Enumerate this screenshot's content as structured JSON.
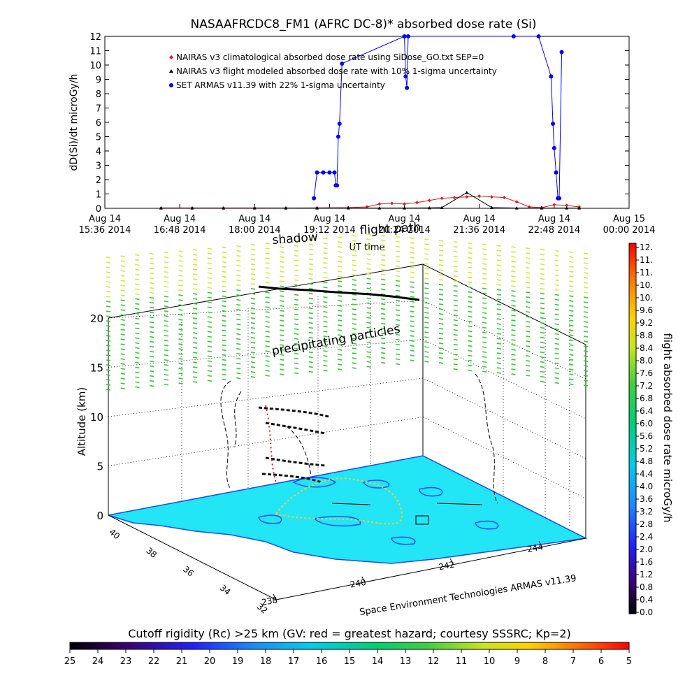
{
  "top_chart": {
    "title": "NASAAFRCDC8_FM1 (AFRC DC-8)* absorbed dose rate (Si)",
    "ylabel": "dD(Si)/dt microGy/h",
    "xlabel": "UT time",
    "yticks": [
      "0",
      "1",
      "2",
      "3",
      "4",
      "5",
      "6",
      "7",
      "8",
      "9",
      "10",
      "11",
      "12"
    ],
    "xticks": [
      {
        "top": "Aug 14",
        "bottom": "15:36 2014"
      },
      {
        "top": "Aug 14",
        "bottom": "16:48 2014"
      },
      {
        "top": "Aug 14",
        "bottom": "18:00 2014"
      },
      {
        "top": "Aug 14",
        "bottom": "19:12 2014"
      },
      {
        "top": "Aug 14",
        "bottom": "20:24 2014"
      },
      {
        "top": "Aug 14",
        "bottom": "21:36 2014"
      },
      {
        "top": "Aug 14",
        "bottom": "22:48 2014"
      },
      {
        "top": "Aug 15",
        "bottom": "00:00 2014"
      }
    ],
    "legend": [
      {
        "label": "NAIRAS v3 climatological absorbed dose rate using SiDose_GO.txt SEP=0",
        "marker": "diamond",
        "color": "#e41a1c"
      },
      {
        "label": "NAIRAS v3 flight modeled absorbed dose rate with 10% 1-sigma uncertainty",
        "marker": "triangle",
        "color": "#000000"
      },
      {
        "label": "SET ARMAS v11.39 with 22% 1-sigma uncertainty",
        "marker": "circle",
        "color": "#0000ff"
      }
    ]
  },
  "chart_data": [
    {
      "type": "line",
      "title": "NASAAFRCDC8_FM1 (AFRC DC-8)* absorbed dose rate (Si)",
      "xlabel": "UT time",
      "ylabel": "dD(Si)/dt microGy/h",
      "x_unit": "hours UT, Aug 14 2014",
      "xlim": [
        15.6,
        24.0
      ],
      "ylim": [
        0,
        12
      ],
      "grid": false,
      "legend_position": "top-left",
      "series": [
        {
          "name": "NAIRAS v3 climatological absorbed dose rate using SiDose_GO.txt SEP=0",
          "color": "#e41a1c",
          "x": [
            16.5,
            17.0,
            17.5,
            18.0,
            18.5,
            19.0,
            19.5,
            19.8,
            20.0,
            20.2,
            20.4,
            20.6,
            20.8,
            21.0,
            21.2,
            21.4,
            21.6,
            21.8,
            22.0,
            22.2,
            22.4,
            22.6,
            22.8,
            23.0,
            23.2
          ],
          "y": [
            0.02,
            0.02,
            0.02,
            0.02,
            0.02,
            0.03,
            0.05,
            0.1,
            0.3,
            0.35,
            0.3,
            0.4,
            0.55,
            0.7,
            0.75,
            0.8,
            0.85,
            0.8,
            0.75,
            0.45,
            0.1,
            0.05,
            0.25,
            0.2,
            0.1
          ]
        },
        {
          "name": "NAIRAS v3 flight modeled absorbed dose rate with 10% 1-sigma uncertainty",
          "color": "#000000",
          "x": [
            16.5,
            17.0,
            17.5,
            18.0,
            18.5,
            19.0,
            19.5,
            20.0,
            20.4,
            20.8,
            21.0,
            21.4,
            21.8,
            22.2,
            22.6,
            23.0,
            23.2
          ],
          "y": [
            0.02,
            0.02,
            0.02,
            0.02,
            0.02,
            0.02,
            0.02,
            0.02,
            0.02,
            0.03,
            0.05,
            1.1,
            0.05,
            0.02,
            0.02,
            0.02,
            0.02
          ]
        },
        {
          "name": "SET ARMAS v11.39 with 22% 1-sigma uncertainty",
          "color": "#0000ff",
          "x": [
            18.95,
            19.0,
            19.1,
            19.2,
            19.28,
            19.3,
            19.32,
            19.34,
            19.36,
            19.4,
            20.4,
            20.42,
            20.44,
            20.46,
            22.15,
            22.55,
            22.75,
            22.78,
            22.8,
            22.83,
            22.86,
            22.88,
            22.92
          ],
          "y": [
            0.7,
            2.5,
            2.5,
            2.5,
            2.5,
            1.6,
            1.6,
            5.0,
            5.9,
            10.1,
            12.0,
            9.2,
            8.4,
            12.0,
            12.0,
            12.0,
            9.2,
            5.9,
            4.2,
            2.5,
            0.7,
            0.7,
            10.9
          ]
        }
      ]
    },
    {
      "type": "scatter",
      "title": "",
      "ylabel": "Altitude (km)",
      "annotations": [
        "flight path",
        "shadow",
        "precipitating particles",
        "Space Environment Technologies ARMAS v11.39"
      ],
      "z_ticks": [
        "0",
        "5",
        "10",
        "15",
        "20"
      ],
      "lat_ticks": [
        "40",
        "38",
        "36",
        "34",
        "32"
      ],
      "lon_ticks": [
        "238",
        "240",
        "242",
        "244"
      ],
      "zlim": [
        0,
        20
      ]
    },
    {
      "type": "heatmap",
      "title": "flight absorbed dose rate microGy/h",
      "colorbar_ticks": [
        "12.",
        "11.",
        "11.",
        "10.",
        "10.",
        "9.6",
        "9.2",
        "8.8",
        "8.4",
        "8.0",
        "7.6",
        "7.2",
        "6.8",
        "6.4",
        "6.0",
        "5.6",
        "5.2",
        "4.8",
        "4.4",
        "4.0",
        "3.6",
        "3.2",
        "2.8",
        "2.4",
        "2.0",
        "1.6",
        "1.2",
        "0.8",
        "0.4",
        "0.0"
      ],
      "range": [
        0,
        12
      ]
    },
    {
      "type": "heatmap",
      "title": "Cutoff rigidity (Rc) >25 km (GV: red = greatest hazard; courtesy SSSRC; Kp=2)",
      "colorbar_ticks": [
        "25",
        "24",
        "23",
        "22",
        "21",
        "20",
        "19",
        "18",
        "17",
        "16",
        "15",
        "14",
        "13",
        "12",
        "11",
        "10",
        "9",
        "8",
        "7",
        "6",
        "5"
      ],
      "range": [
        25,
        5
      ]
    }
  ],
  "scene3d": {
    "ylabel": "Altitude (km)",
    "zticks": [
      "0",
      "5",
      "10",
      "15",
      "20"
    ],
    "lat_ticks": [
      "40",
      "38",
      "36",
      "34",
      "32"
    ],
    "lon_ticks": [
      "238",
      "240",
      "242",
      "244"
    ],
    "flight_path_label": "flight path",
    "shadow_label": "shadow",
    "precip_label": "precipitating particles",
    "credit": "Space Environment Technologies ARMAS v11.39"
  },
  "right_colorbar": {
    "title": "flight absorbed dose rate microGy/h",
    "ticks": [
      "12.",
      "11.",
      "11.",
      "10.",
      "10.",
      "9.6",
      "9.2",
      "8.8",
      "8.4",
      "8.0",
      "7.6",
      "7.2",
      "6.8",
      "6.4",
      "6.0",
      "5.6",
      "5.2",
      "4.8",
      "4.4",
      "4.0",
      "3.6",
      "3.2",
      "2.8",
      "2.4",
      "2.0",
      "1.6",
      "1.2",
      "0.8",
      "0.4",
      "0.0"
    ]
  },
  "bottom_colorbar": {
    "title": "Cutoff rigidity (Rc) >25 km (GV: red = greatest hazard; courtesy SSSRC; Kp=2)",
    "ticks": [
      "25",
      "24",
      "23",
      "22",
      "21",
      "20",
      "19",
      "18",
      "17",
      "16",
      "15",
      "14",
      "13",
      "12",
      "11",
      "10",
      "9",
      "8",
      "7",
      "6",
      "5"
    ]
  },
  "colors": {
    "ground_fill": "#22e5f5",
    "ground_contour": "#1a4cff",
    "precip_green": "#33cc33",
    "precip_yellow": "#ccee33"
  }
}
